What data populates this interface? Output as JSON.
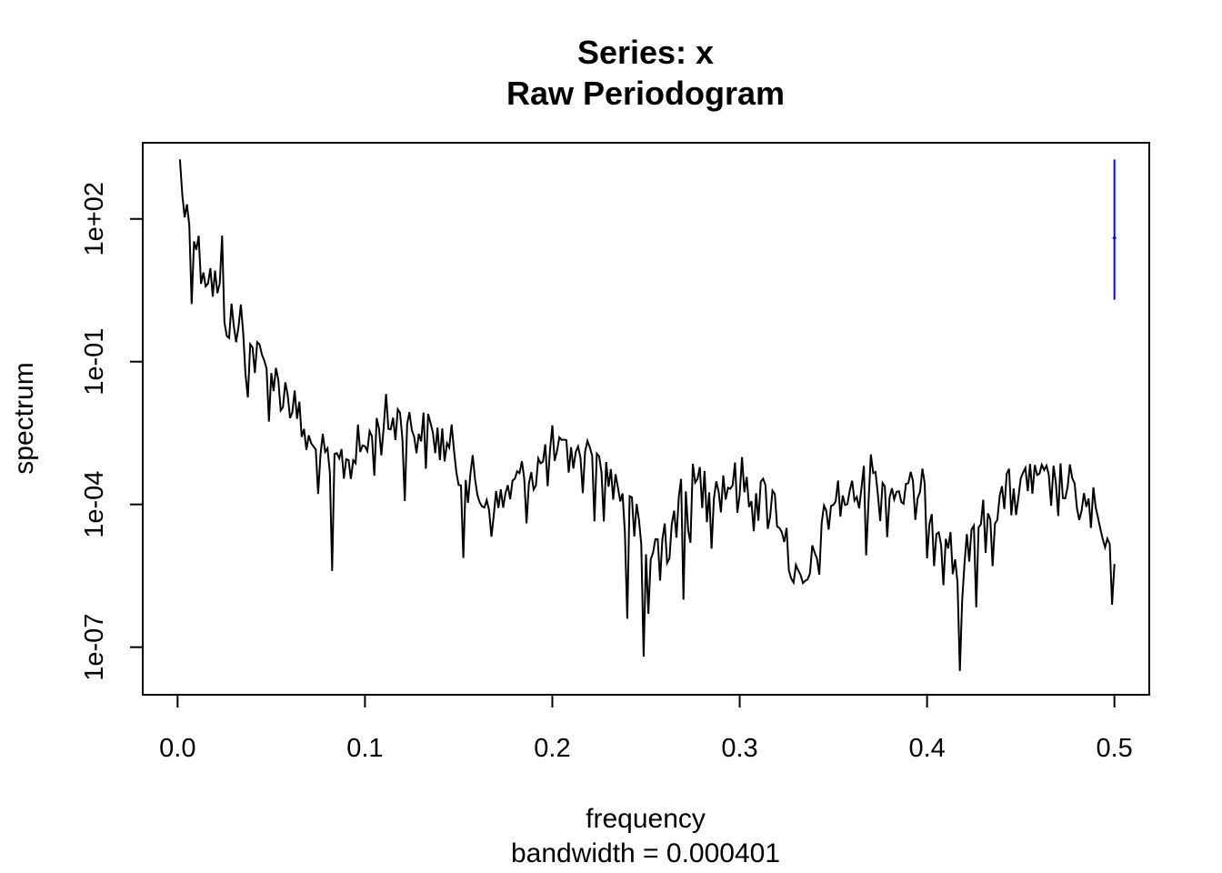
{
  "chart_data": {
    "type": "line",
    "title": "Series: x",
    "subtitle": "Raw Periodogram",
    "xlabel": "frequency",
    "xsublabel": "bandwidth = 0.000401",
    "ylabel": "spectrum",
    "y_scale": "log10",
    "xlim": [
      -0.0186,
      0.5186
    ],
    "ylim_log10": [
      -8.0,
      3.6
    ],
    "x_ticks": [
      {
        "value": 0.0,
        "label": "0.0"
      },
      {
        "value": 0.1,
        "label": "0.1"
      },
      {
        "value": 0.2,
        "label": "0.2"
      },
      {
        "value": 0.3,
        "label": "0.3"
      },
      {
        "value": 0.4,
        "label": "0.4"
      },
      {
        "value": 0.5,
        "label": "0.5"
      }
    ],
    "y_ticks": [
      {
        "value": 100,
        "label": "1e+02"
      },
      {
        "value": 0.1,
        "label": "1e-01"
      },
      {
        "value": 0.0001,
        "label": "1e-04"
      },
      {
        "value": 1e-07,
        "label": "1e-07"
      }
    ],
    "series": [
      {
        "color": "#000000",
        "anchors_log10": [
          [
            0.0013,
            3.25
          ],
          [
            0.003,
            2.2
          ],
          [
            0.005,
            2.1
          ],
          [
            0.008,
            1.8
          ],
          [
            0.012,
            1.2
          ],
          [
            0.02,
            0.6
          ],
          [
            0.03,
            -0.3
          ],
          [
            0.04,
            -0.8
          ],
          [
            0.05,
            -1.3
          ],
          [
            0.06,
            -1.75
          ],
          [
            0.07,
            -2.8
          ],
          [
            0.08,
            -3.2
          ],
          [
            0.09,
            -3.1
          ],
          [
            0.1,
            -2.8
          ],
          [
            0.11,
            -2.3
          ],
          [
            0.12,
            -2.3
          ],
          [
            0.13,
            -2.5
          ],
          [
            0.14,
            -2.6
          ],
          [
            0.15,
            -3.2
          ],
          [
            0.16,
            -3.8
          ],
          [
            0.17,
            -4.1
          ],
          [
            0.18,
            -3.6
          ],
          [
            0.19,
            -3.3
          ],
          [
            0.2,
            -3.0
          ],
          [
            0.21,
            -3.05
          ],
          [
            0.22,
            -3.1
          ],
          [
            0.23,
            -3.4
          ],
          [
            0.24,
            -3.9
          ],
          [
            0.25,
            -5.2
          ],
          [
            0.26,
            -4.6
          ],
          [
            0.27,
            -3.9
          ],
          [
            0.28,
            -3.5
          ],
          [
            0.29,
            -3.6
          ],
          [
            0.3,
            -3.55
          ],
          [
            0.31,
            -3.8
          ],
          [
            0.32,
            -4.0
          ],
          [
            0.325,
            -4.8
          ],
          [
            0.333,
            -6.0
          ],
          [
            0.34,
            -5.2
          ],
          [
            0.35,
            -3.9
          ],
          [
            0.36,
            -3.9
          ],
          [
            0.37,
            -3.6
          ],
          [
            0.38,
            -3.7
          ],
          [
            0.39,
            -3.8
          ],
          [
            0.4,
            -4.0
          ],
          [
            0.41,
            -4.6
          ],
          [
            0.417,
            -5.6
          ],
          [
            0.425,
            -4.8
          ],
          [
            0.43,
            -4.4
          ],
          [
            0.44,
            -3.9
          ],
          [
            0.45,
            -3.7
          ],
          [
            0.46,
            -3.6
          ],
          [
            0.47,
            -3.6
          ],
          [
            0.48,
            -3.9
          ],
          [
            0.49,
            -4.3
          ],
          [
            0.5,
            -5.7
          ]
        ],
        "features_log10": [
          [
            0.0824,
            -5.4
          ],
          [
            0.2405,
            -6.4
          ],
          [
            0.2485,
            -7.2
          ],
          [
            0.2515,
            -6.3
          ],
          [
            0.258,
            -5.6
          ],
          [
            0.2695,
            -6.0
          ],
          [
            0.4175,
            -7.5
          ],
          [
            0.2385,
            -4.6
          ],
          [
            0.0373,
            -1.75
          ],
          [
            0.0332,
            0.2
          ],
          [
            0.0233,
            1.65
          ],
          [
            0.1175,
            -2.0
          ],
          [
            0.2095,
            -2.8
          ],
          [
            0.2205,
            -2.8
          ],
          [
            0.3695,
            -2.95
          ],
          [
            0.4555,
            -3.15
          ]
        ]
      },
      {
        "name": "bandwidth-marker",
        "color": "#0000ff",
        "x": 0.5,
        "y_low_log10": 0.3,
        "y_high_log10": 3.25,
        "y_mid_log10": 1.6
      }
    ],
    "grid": false,
    "legend": "none"
  }
}
